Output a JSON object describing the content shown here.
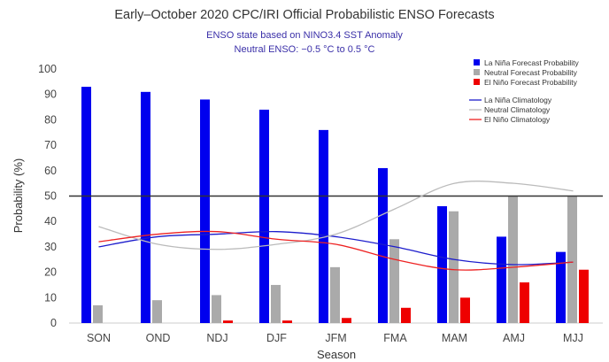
{
  "chart_data": {
    "type": "bar",
    "title": "Early–October 2020 CPC/IRI Official Probabilistic ENSO Forecasts",
    "subtitle_lines": [
      "ENSO state based on NINO3.4 SST Anomaly",
      "Neutral ENSO: −0.5 °C to 0.5 °C"
    ],
    "xlabel": "Season",
    "ylabel": "Probability (%)",
    "ylim": [
      0,
      100
    ],
    "yticks": [
      0,
      10,
      20,
      30,
      40,
      50,
      60,
      70,
      80,
      90,
      100
    ],
    "reference_line": 50,
    "categories": [
      "SON",
      "OND",
      "NDJ",
      "DJF",
      "JFM",
      "FMA",
      "MAM",
      "AMJ",
      "MJJ"
    ],
    "series": [
      {
        "name": "La Niña Forecast Probability",
        "color": "#0000ee",
        "values": [
          93,
          91,
          88,
          84,
          76,
          61,
          46,
          34,
          28
        ]
      },
      {
        "name": "Neutral Forecast Probability",
        "color": "#aaaaaa",
        "values": [
          7,
          9,
          11,
          15,
          22,
          33,
          44,
          50,
          50
        ]
      },
      {
        "name": "El Niño Forecast Probability",
        "color": "#ee0000",
        "values": [
          0,
          0,
          1,
          1,
          2,
          6,
          10,
          16,
          21
        ]
      }
    ],
    "climatology": [
      {
        "name": "La Niña Climatology",
        "color": "#1c1ccc",
        "values": [
          30,
          34,
          35,
          36,
          34,
          30,
          25,
          23,
          24
        ]
      },
      {
        "name": "Neutral Climatology",
        "color": "#bbbbbb",
        "values": [
          38,
          31,
          29,
          31,
          35,
          45,
          55,
          55,
          52
        ]
      },
      {
        "name": "El Niño Climatology",
        "color": "#ee2222",
        "values": [
          32,
          35,
          36,
          33,
          31,
          25,
          21,
          22,
          24
        ]
      }
    ],
    "legend_position": "top-right"
  }
}
